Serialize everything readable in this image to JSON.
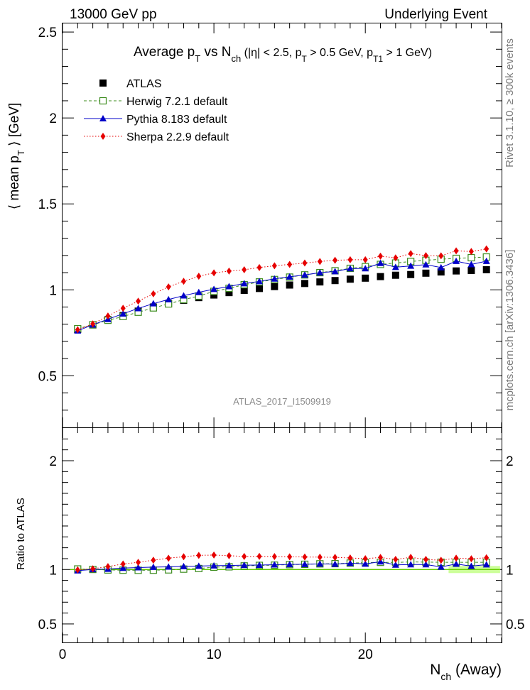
{
  "header": {
    "energy": "13000 GeV pp",
    "process": "Underlying Event"
  },
  "side_labels": {
    "rivet": "Rivet 3.1.10, ≥ 300k events",
    "mcplots": "mcplots.cern.ch [arXiv:1306.3436]"
  },
  "watermark": "ATLAS_2017_I1509919",
  "chart_data": [
    {
      "type": "scatter",
      "title": "Average p_T vs N_ch (|η| < 2.5, p_T > 0.5 GeV, p_T1 > 1 GeV)",
      "title_parts": {
        "a": "Average p",
        "a_sub": "T",
        "b": " vs N",
        "b_sub": "ch",
        "c": " (|η| < 2.5, p",
        "c_sub": "T",
        "d": " > 0.5 GeV, p",
        "d_sub": "T1",
        "e": " > 1 GeV)"
      },
      "ylabel": "⟨ mean p_T ⟩ [GeV]",
      "ylabel_parts": {
        "a": "⟨ mean p",
        "sub": "T",
        "b": " ⟩ [GeV]"
      },
      "xlim": [
        0,
        29
      ],
      "ylim": [
        0.2,
        2.55
      ],
      "yticks": [
        0.5,
        1,
        1.5,
        2,
        2.5
      ],
      "ytick_labels": [
        "0.5",
        "1",
        "1.5",
        "2",
        "2.5"
      ],
      "grid": false,
      "legend_position": "top-left",
      "x": [
        1,
        2,
        3,
        4,
        5,
        6,
        7,
        8,
        9,
        10,
        11,
        12,
        13,
        14,
        15,
        16,
        17,
        18,
        19,
        20,
        21,
        22,
        23,
        24,
        25,
        26,
        27,
        28
      ],
      "series": [
        {
          "name": "ATLAS",
          "color": "#000000",
          "marker": "square-filled",
          "line": "none",
          "values": [
            0.77,
            0.796,
            0.826,
            0.85,
            0.876,
            0.9,
            0.921,
            0.939,
            0.955,
            0.97,
            0.984,
            0.997,
            1.008,
            1.019,
            1.028,
            1.037,
            1.046,
            1.054,
            1.062,
            1.068,
            1.077,
            1.085,
            1.089,
            1.097,
            1.104,
            1.11,
            1.113,
            1.117
          ]
        },
        {
          "name": "Herwig 7.2.1 default",
          "color": "#3c8c1e",
          "marker": "square-open",
          "line": "dashed",
          "values": [
            0.774,
            0.797,
            0.823,
            0.845,
            0.87,
            0.895,
            0.918,
            0.943,
            0.964,
            0.991,
            1.009,
            1.03,
            1.046,
            1.06,
            1.074,
            1.087,
            1.1,
            1.111,
            1.125,
            1.135,
            1.148,
            1.156,
            1.165,
            1.172,
            1.178,
            1.183,
            1.187,
            1.191
          ]
        },
        {
          "name": "Pythia 8.183 default",
          "color": "#0000c8",
          "marker": "triangle-filled",
          "line": "solid",
          "values": [
            0.762,
            0.797,
            0.829,
            0.861,
            0.892,
            0.92,
            0.944,
            0.966,
            0.986,
            1.004,
            1.02,
            1.037,
            1.049,
            1.064,
            1.076,
            1.087,
            1.1,
            1.107,
            1.124,
            1.124,
            1.155,
            1.132,
            1.139,
            1.147,
            1.13,
            1.167,
            1.148,
            1.167
          ]
        },
        {
          "name": "Sherpa 2.2.9 default",
          "color": "#e60000",
          "marker": "diamond-filled",
          "line": "dotted",
          "values": [
            0.768,
            0.802,
            0.848,
            0.893,
            0.934,
            0.977,
            1.017,
            1.05,
            1.079,
            1.099,
            1.109,
            1.117,
            1.13,
            1.14,
            1.148,
            1.156,
            1.165,
            1.172,
            1.175,
            1.175,
            1.196,
            1.186,
            1.211,
            1.199,
            1.198,
            1.227,
            1.223,
            1.238
          ]
        }
      ]
    },
    {
      "type": "scatter",
      "ylabel": "Ratio to ATLAS",
      "xlabel": "N_ch (Away)",
      "xlabel_parts": {
        "a": "N",
        "sub": "ch",
        "b": " (Away)"
      },
      "xlim": [
        0,
        29
      ],
      "xticks": [
        0,
        10,
        20
      ],
      "xtick_labels": [
        "0",
        "10",
        "20"
      ],
      "ylim": [
        0.33,
        2.3
      ],
      "yticks": [
        0.5,
        1,
        2
      ],
      "ytick_labels": [
        "0.5",
        "1",
        "2"
      ],
      "ytick_labels_right": [
        "0.5",
        "1",
        "2"
      ],
      "reference_line": 1,
      "band_color": "#ccff99",
      "reference_color": "#66cc00",
      "x": [
        1,
        2,
        3,
        4,
        5,
        6,
        7,
        8,
        9,
        10,
        11,
        12,
        13,
        14,
        15,
        16,
        17,
        18,
        19,
        20,
        21,
        22,
        23,
        24,
        25,
        26,
        27,
        28
      ],
      "series": [
        {
          "name": "Herwig 7.2.1 default",
          "color": "#3c8c1e",
          "marker": "square-open",
          "line": "dashed",
          "values": [
            1.005,
            1.001,
            0.996,
            0.994,
            0.993,
            0.994,
            0.997,
            1.004,
            1.009,
            1.022,
            1.025,
            1.033,
            1.038,
            1.04,
            1.045,
            1.048,
            1.052,
            1.054,
            1.059,
            1.063,
            1.066,
            1.065,
            1.07,
            1.068,
            1.067,
            1.066,
            1.066,
            1.066
          ]
        },
        {
          "name": "Pythia 8.183 default",
          "color": "#0000c8",
          "marker": "triangle-filled",
          "line": "solid",
          "values": [
            0.99,
            1.001,
            1.004,
            1.013,
            1.018,
            1.022,
            1.025,
            1.029,
            1.032,
            1.035,
            1.037,
            1.04,
            1.041,
            1.044,
            1.047,
            1.048,
            1.052,
            1.05,
            1.058,
            1.052,
            1.072,
            1.043,
            1.046,
            1.046,
            1.024,
            1.051,
            1.031,
            1.045
          ]
        },
        {
          "name": "Sherpa 2.2.9 default",
          "color": "#e60000",
          "marker": "diamond-filled",
          "line": "dotted",
          "values": [
            0.997,
            1.007,
            1.027,
            1.051,
            1.066,
            1.086,
            1.104,
            1.118,
            1.13,
            1.133,
            1.127,
            1.12,
            1.121,
            1.119,
            1.117,
            1.115,
            1.114,
            1.112,
            1.106,
            1.1,
            1.111,
            1.093,
            1.112,
            1.093,
            1.085,
            1.105,
            1.099,
            1.108
          ]
        }
      ]
    }
  ]
}
